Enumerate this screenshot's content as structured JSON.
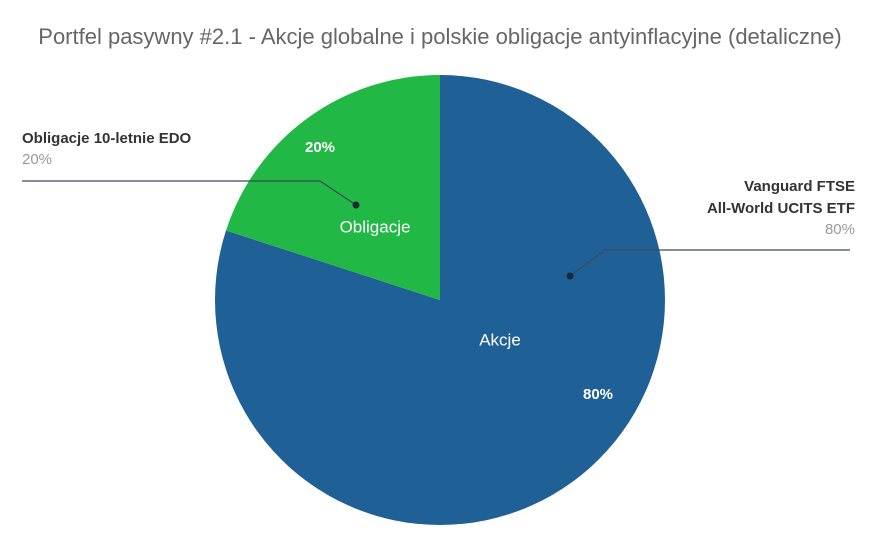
{
  "chart_data": {
    "type": "pie",
    "title": "Portfel pasywny #2.1 - Akcje globalne i polskie obligacje antyinflacyjne (detaliczne)",
    "groups": [
      "Akcje",
      "Obligacje"
    ],
    "names": [
      [
        "Vanguard FTSE",
        "All-World UCITS ETF"
      ],
      [
        "Obligacje 10-letnie EDO"
      ]
    ],
    "values": [
      80,
      20
    ],
    "value_labels": [
      "80%",
      "20%"
    ],
    "colors": [
      "#1f6096",
      "#22b845"
    ]
  }
}
